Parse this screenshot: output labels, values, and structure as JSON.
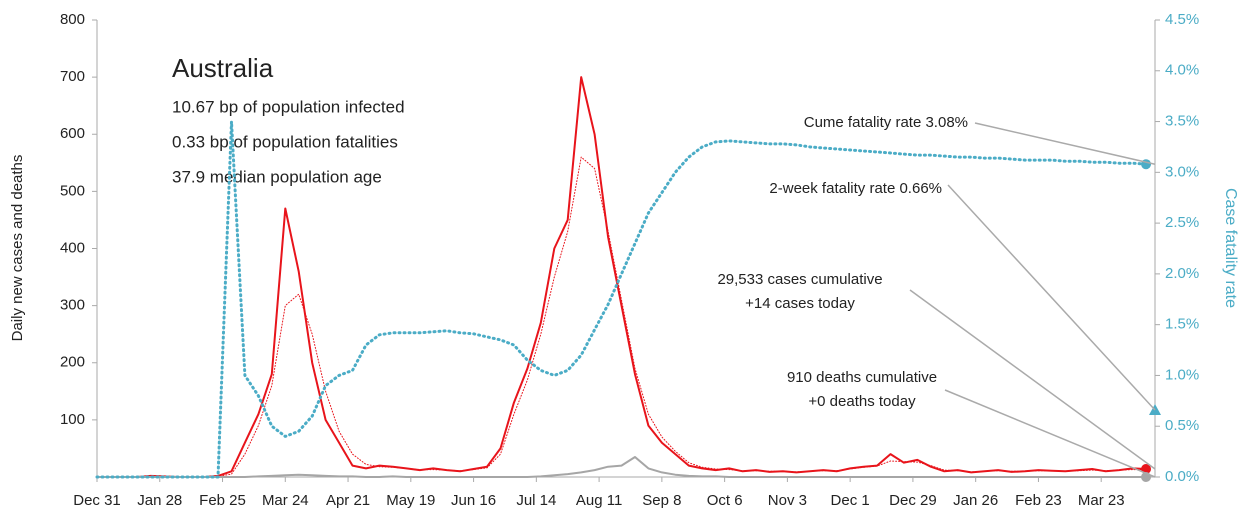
{
  "chart_data": {
    "type": "line",
    "info": {
      "title": "Australia",
      "lines": [
        "10.67 bp of population infected",
        "0.33 bp of population fatalities",
        "37.9 median population age"
      ]
    },
    "ylabel": "Daily new cases and deaths",
    "y2label": "Case fatality rate",
    "x": [
      0,
      6,
      12,
      18,
      24,
      30,
      36,
      42,
      48,
      54,
      60,
      66,
      72,
      78,
      84,
      90,
      96,
      102,
      108,
      114,
      120,
      126,
      132,
      138,
      144,
      150,
      156,
      162,
      168,
      174,
      180,
      186,
      192,
      198,
      204,
      210,
      216,
      222,
      228,
      234,
      240,
      246,
      252,
      258,
      264,
      270,
      276,
      282,
      288,
      294,
      300,
      306,
      312,
      318,
      324,
      330,
      336,
      342,
      348,
      354,
      360,
      366,
      372,
      378,
      384,
      390,
      396,
      402,
      408,
      414,
      420,
      426,
      432,
      438,
      444,
      450,
      456,
      462,
      468
    ],
    "xlim": [
      0,
      472
    ],
    "xticks": [
      {
        "value": 0,
        "label": "Dec 31"
      },
      {
        "value": 28,
        "label": "Jan 28"
      },
      {
        "value": 56,
        "label": "Feb 25"
      },
      {
        "value": 84,
        "label": "Mar 24"
      },
      {
        "value": 112,
        "label": "Apr 21"
      },
      {
        "value": 140,
        "label": "May 19"
      },
      {
        "value": 168,
        "label": "Jun 16"
      },
      {
        "value": 196,
        "label": "Jul 14"
      },
      {
        "value": 224,
        "label": "Aug 11"
      },
      {
        "value": 252,
        "label": "Sep 8"
      },
      {
        "value": 280,
        "label": "Oct 6"
      },
      {
        "value": 308,
        "label": "Nov 3"
      },
      {
        "value": 336,
        "label": "Dec 1"
      },
      {
        "value": 364,
        "label": "Dec 29"
      },
      {
        "value": 392,
        "label": "Jan 26"
      },
      {
        "value": 420,
        "label": "Feb 23"
      },
      {
        "value": 448,
        "label": "Mar 23"
      }
    ],
    "ylim": [
      0,
      800
    ],
    "yticks": [
      100,
      200,
      300,
      400,
      500,
      600,
      700,
      800
    ],
    "y2lim": [
      0,
      4.5
    ],
    "y2ticks": [
      {
        "value": 0,
        "label": "0.0%"
      },
      {
        "value": 0.5,
        "label": "0.5%"
      },
      {
        "value": 1,
        "label": "1.0%"
      },
      {
        "value": 1.5,
        "label": "1.5%"
      },
      {
        "value": 2,
        "label": "2.0%"
      },
      {
        "value": 2.5,
        "label": "2.5%"
      },
      {
        "value": 3,
        "label": "3.0%"
      },
      {
        "value": 3.5,
        "label": "3.5%"
      },
      {
        "value": 4,
        "label": "4.0%"
      },
      {
        "value": 4.5,
        "label": "4.5%"
      }
    ],
    "series": [
      {
        "color": "#e8141b",
        "style": "solid",
        "width": 2,
        "values": [
          0,
          0,
          0,
          0,
          2,
          1,
          0,
          0,
          0,
          2,
          10,
          60,
          110,
          180,
          470,
          360,
          200,
          100,
          60,
          20,
          15,
          20,
          18,
          15,
          12,
          15,
          12,
          10,
          14,
          18,
          50,
          130,
          190,
          270,
          400,
          450,
          700,
          600,
          420,
          300,
          180,
          90,
          60,
          40,
          20,
          15,
          12,
          15,
          10,
          12,
          9,
          10,
          8,
          10,
          12,
          10,
          15,
          18,
          20,
          40,
          25,
          30,
          18,
          10,
          12,
          8,
          10,
          12,
          9,
          10,
          12,
          11,
          10,
          12,
          14,
          10,
          12,
          15,
          14
        ],
        "end_marker": "circle"
      },
      {
        "color": "#e8141b",
        "style": "dotted",
        "width": 1,
        "values": [
          0,
          0,
          0,
          0,
          1,
          1,
          0,
          0,
          0,
          1,
          5,
          40,
          90,
          160,
          300,
          320,
          250,
          150,
          80,
          40,
          22,
          18,
          17,
          15,
          13,
          13,
          12,
          11,
          13,
          16,
          40,
          110,
          170,
          250,
          350,
          430,
          560,
          540,
          430,
          310,
          190,
          110,
          70,
          45,
          25,
          17,
          14,
          13,
          11,
          11,
          10,
          10,
          9,
          10,
          11,
          11,
          14,
          17,
          19,
          28,
          27,
          26,
          20,
          12,
          11,
          9,
          10,
          11,
          10,
          10,
          11,
          11,
          10,
          11,
          12,
          11,
          12,
          13,
          13
        ]
      },
      {
        "color": "#a6a6a6",
        "style": "solid",
        "width": 2,
        "values": [
          0,
          0,
          0,
          0,
          0,
          0,
          0,
          0,
          0,
          0,
          0,
          0,
          1,
          2,
          3,
          4,
          3,
          2,
          1,
          1,
          0,
          0,
          1,
          0,
          0,
          0,
          0,
          0,
          0,
          0,
          0,
          0,
          0,
          1,
          3,
          5,
          8,
          12,
          18,
          20,
          35,
          15,
          8,
          4,
          2,
          1,
          1,
          0,
          0,
          0,
          0,
          0,
          0,
          0,
          0,
          0,
          0,
          0,
          0,
          0,
          0,
          0,
          0,
          0,
          0,
          0,
          0,
          0,
          0,
          0,
          0,
          0,
          0,
          0,
          0,
          0,
          0,
          0,
          0
        ],
        "end_marker": "circle"
      },
      {
        "color": "#4bacc6",
        "style": "dotted",
        "width": 3,
        "axis": "y2",
        "values": [
          0,
          0,
          0,
          0,
          0,
          0,
          0,
          0,
          0,
          0,
          3.5,
          1.0,
          0.8,
          0.5,
          0.4,
          0.45,
          0.6,
          0.9,
          1.0,
          1.05,
          1.3,
          1.4,
          1.42,
          1.42,
          1.42,
          1.43,
          1.44,
          1.42,
          1.41,
          1.38,
          1.35,
          1.3,
          1.15,
          1.05,
          1.0,
          1.05,
          1.2,
          1.45,
          1.7,
          2.0,
          2.3,
          2.6,
          2.8,
          3.0,
          3.15,
          3.25,
          3.3,
          3.31,
          3.3,
          3.29,
          3.28,
          3.28,
          3.27,
          3.25,
          3.24,
          3.23,
          3.22,
          3.21,
          3.2,
          3.19,
          3.18,
          3.17,
          3.17,
          3.16,
          3.15,
          3.15,
          3.14,
          3.14,
          3.13,
          3.12,
          3.12,
          3.12,
          3.11,
          3.11,
          3.1,
          3.1,
          3.09,
          3.09,
          3.08
        ],
        "end_marker": "circle"
      }
    ],
    "annotations": [
      {
        "lines": [
          "Cume fatality rate 3.08%"
        ]
      },
      {
        "lines": [
          "2-week fatality rate 0.66%"
        ],
        "value": 0.66,
        "axis": "y2",
        "marker": "triangle",
        "color": "#4bacc6"
      },
      {
        "lines": [
          "29,533 cases cumulative",
          "+14 cases today"
        ]
      },
      {
        "lines": [
          "910 deaths cumulative",
          "+0 deaths today"
        ]
      }
    ]
  }
}
